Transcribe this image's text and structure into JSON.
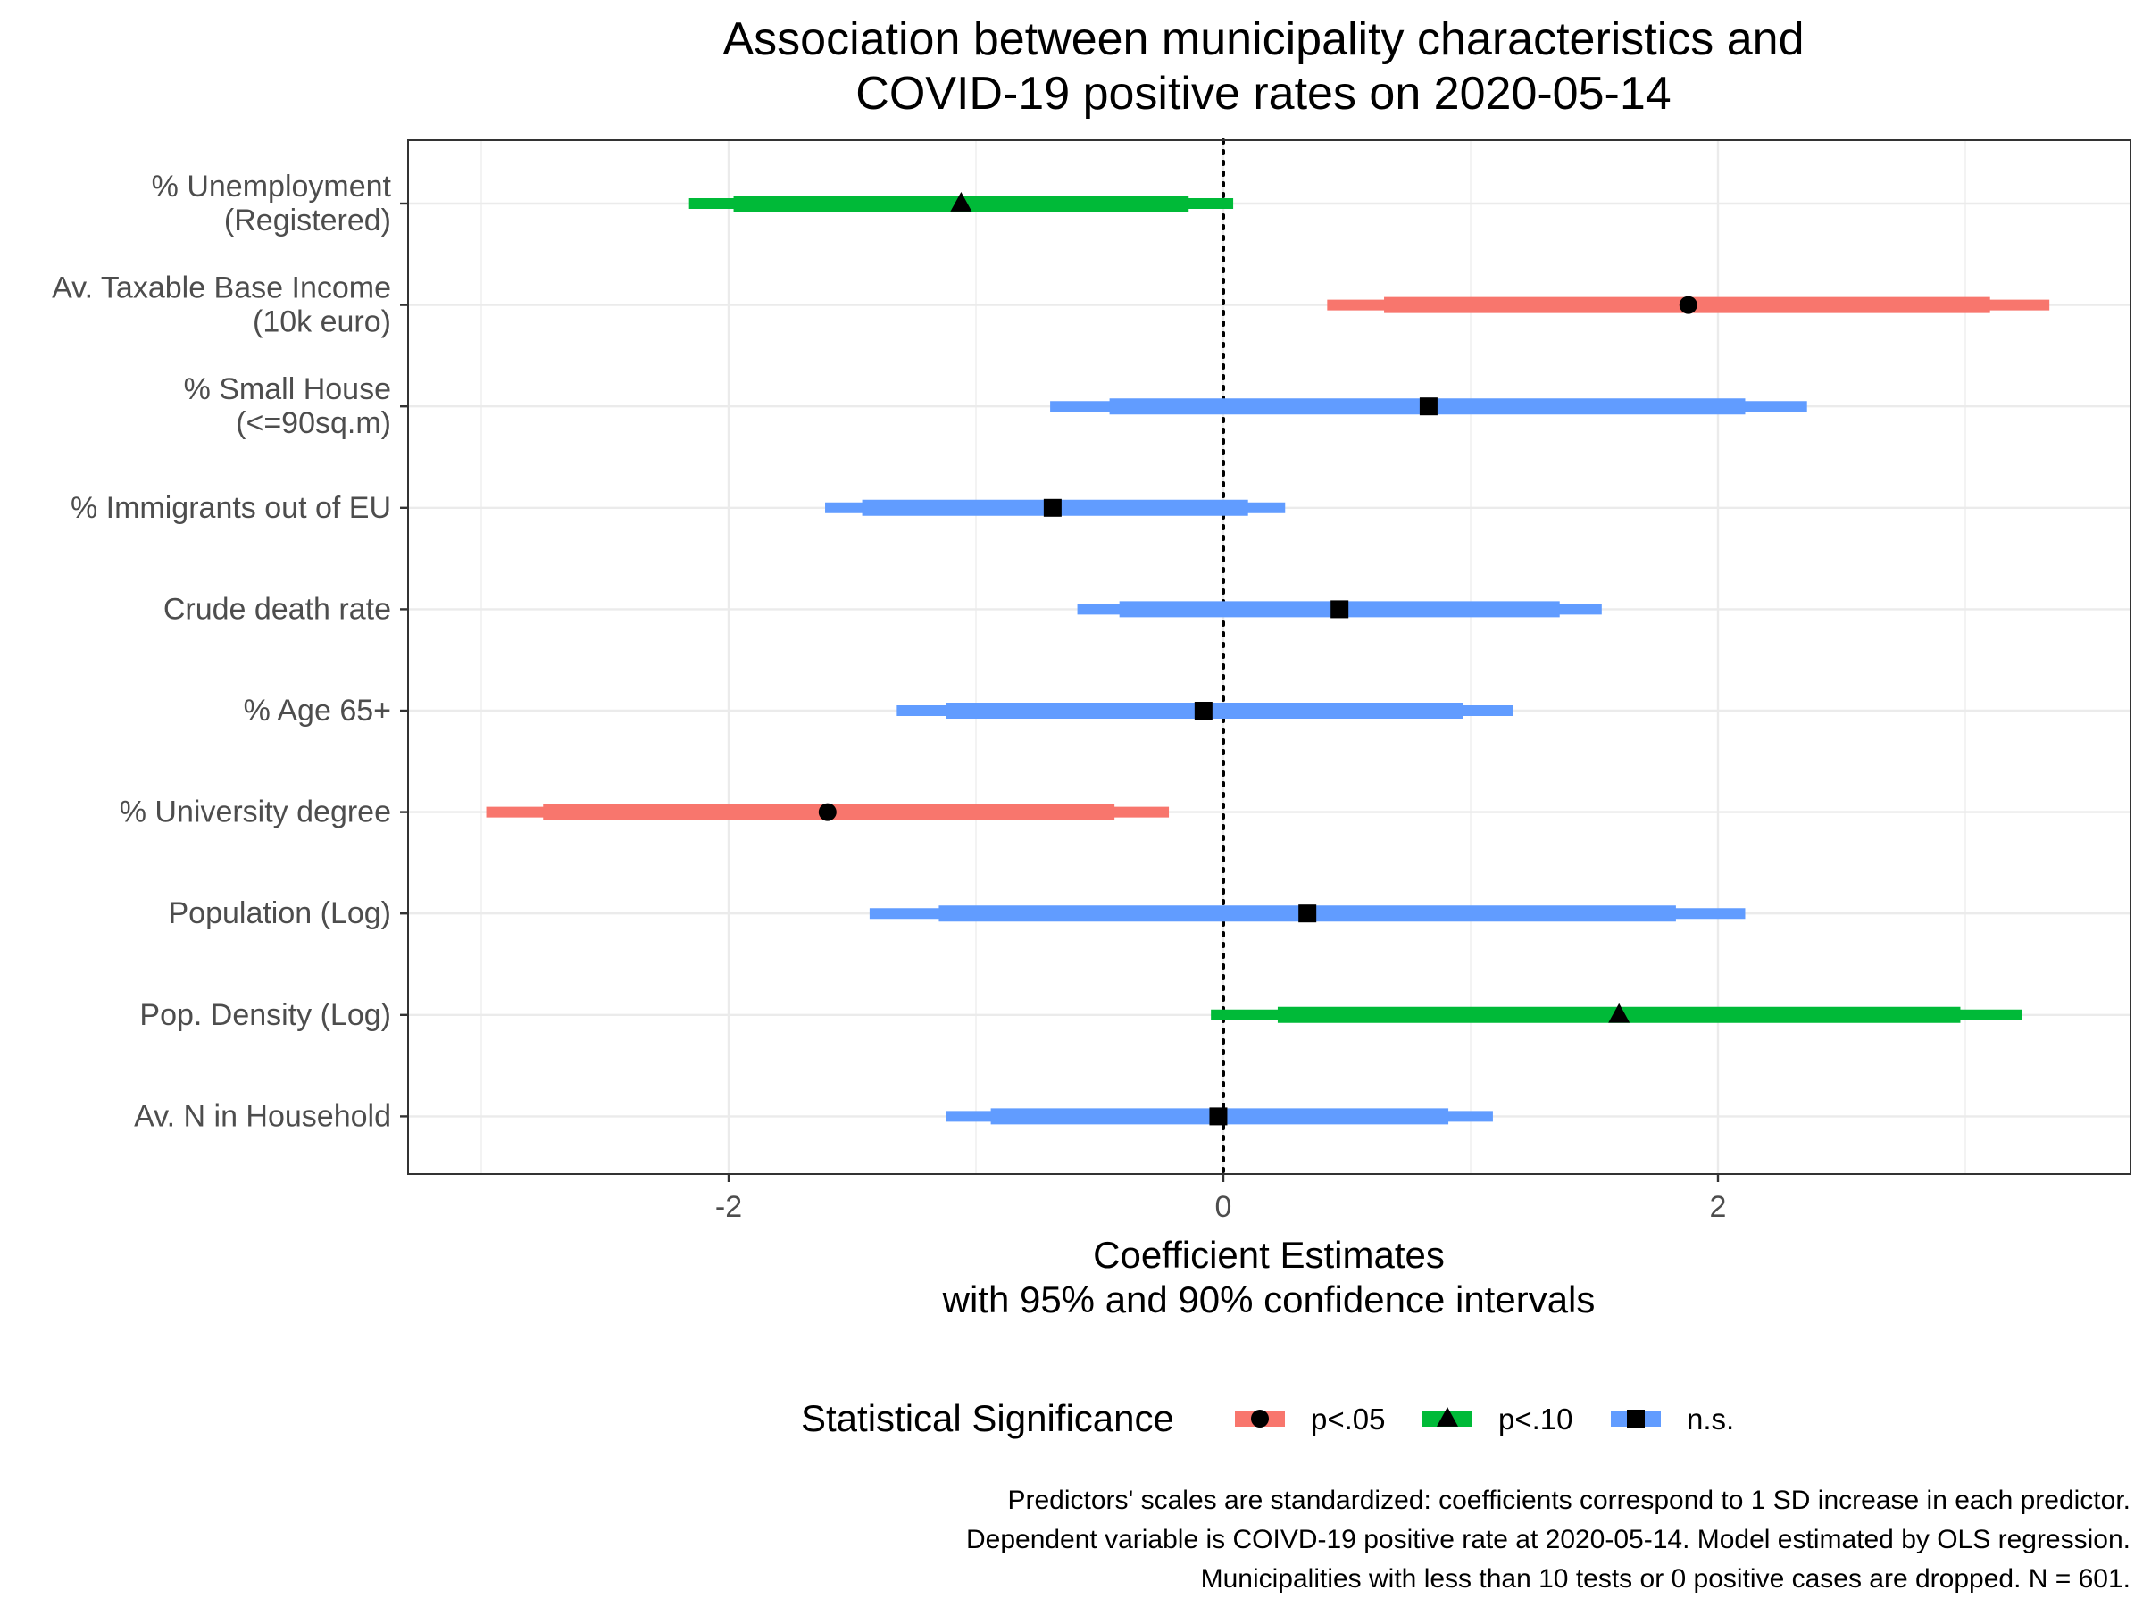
{
  "chart_data": {
    "type": "coefficient-plot",
    "title": [
      "Association between municipality characteristics and",
      "COVID-19 positive rates on 2020-05-14"
    ],
    "xlabel": [
      "Coefficient Estimates",
      "with 95% and 90% confidence intervals"
    ],
    "ylabel": "",
    "xlim": [
      -3.3,
      3.6
    ],
    "xticks": [
      -2,
      0,
      2
    ],
    "xtick_labels": [
      "-2",
      "0",
      "2"
    ],
    "reference_line": 0,
    "grid": true,
    "legend": {
      "title": "Statistical Significance",
      "position": "bottom",
      "entries": [
        {
          "key": "p05",
          "label": "p<.05",
          "color": "#F8766D",
          "shape": "circle"
        },
        {
          "key": "p10",
          "label": "p<.10",
          "color": "#00BA38",
          "shape": "triangle"
        },
        {
          "key": "ns",
          "label": "n.s.",
          "color": "#619CFF",
          "shape": "square"
        }
      ]
    },
    "rows": [
      {
        "label": [
          "% Unemployment",
          "(Registered)"
        ],
        "estimate": -1.06,
        "ci95": [
          -2.16,
          0.04
        ],
        "ci90": [
          -1.98,
          -0.14
        ],
        "sig": "p10"
      },
      {
        "label": [
          "Av. Taxable Base Income",
          "(10k euro)"
        ],
        "estimate": 1.88,
        "ci95": [
          0.42,
          3.34
        ],
        "ci90": [
          0.65,
          3.1
        ],
        "sig": "p05"
      },
      {
        "label": [
          "% Small House",
          "(<=90sq.m)"
        ],
        "estimate": 0.83,
        "ci95": [
          -0.7,
          2.36
        ],
        "ci90": [
          -0.46,
          2.11
        ],
        "sig": "ns"
      },
      {
        "label": [
          "% Immigrants out of EU"
        ],
        "estimate": -0.69,
        "ci95": [
          -1.61,
          0.25
        ],
        "ci90": [
          -1.46,
          0.1
        ],
        "sig": "ns"
      },
      {
        "label": [
          "Crude death rate"
        ],
        "estimate": 0.47,
        "ci95": [
          -0.59,
          1.53
        ],
        "ci90": [
          -0.42,
          1.36
        ],
        "sig": "ns"
      },
      {
        "label": [
          "% Age 65+"
        ],
        "estimate": -0.08,
        "ci95": [
          -1.32,
          1.17
        ],
        "ci90": [
          -1.12,
          0.97
        ],
        "sig": "ns"
      },
      {
        "label": [
          "% University degree"
        ],
        "estimate": -1.6,
        "ci95": [
          -2.98,
          -0.22
        ],
        "ci90": [
          -2.75,
          -0.44
        ],
        "sig": "p05"
      },
      {
        "label": [
          "Population (Log)"
        ],
        "estimate": 0.34,
        "ci95": [
          -1.43,
          2.11
        ],
        "ci90": [
          -1.15,
          1.83
        ],
        "sig": "ns"
      },
      {
        "label": [
          "Pop. Density (Log)"
        ],
        "estimate": 1.6,
        "ci95": [
          -0.05,
          3.23
        ],
        "ci90": [
          0.22,
          2.98
        ],
        "sig": "p10"
      },
      {
        "label": [
          "Av. N in Household"
        ],
        "estimate": -0.02,
        "ci95": [
          -1.12,
          1.09
        ],
        "ci90": [
          -0.94,
          0.91
        ],
        "sig": "ns"
      }
    ],
    "caption": [
      "Predictors' scales are standardized: coefficients correspond to 1 SD increase in each predictor.",
      "Dependent variable is COIVD-19 positive rate at 2020-05-14. Model estimated by OLS regression.",
      "Municipalities with less than 10 tests or 0 positive cases are dropped. N = 601."
    ]
  }
}
